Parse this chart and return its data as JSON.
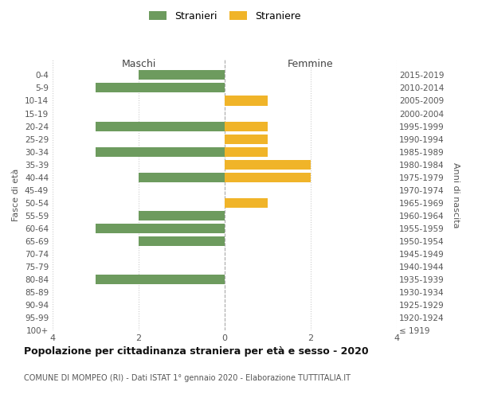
{
  "age_groups": [
    "0-4",
    "5-9",
    "10-14",
    "15-19",
    "20-24",
    "25-29",
    "30-34",
    "35-39",
    "40-44",
    "45-49",
    "50-54",
    "55-59",
    "60-64",
    "65-69",
    "70-74",
    "75-79",
    "80-84",
    "85-89",
    "90-94",
    "95-99",
    "100+"
  ],
  "birth_years": [
    "2015-2019",
    "2010-2014",
    "2005-2009",
    "2000-2004",
    "1995-1999",
    "1990-1994",
    "1985-1989",
    "1980-1984",
    "1975-1979",
    "1970-1974",
    "1965-1969",
    "1960-1964",
    "1955-1959",
    "1950-1954",
    "1945-1949",
    "1940-1944",
    "1935-1939",
    "1930-1934",
    "1925-1929",
    "1920-1924",
    "≤ 1919"
  ],
  "maschi": [
    2,
    3,
    0,
    0,
    3,
    0,
    3,
    0,
    2,
    0,
    0,
    2,
    3,
    2,
    0,
    0,
    3,
    0,
    0,
    0,
    0
  ],
  "femmine": [
    0,
    0,
    1,
    0,
    1,
    1,
    1,
    2,
    2,
    0,
    1,
    0,
    0,
    0,
    0,
    0,
    0,
    0,
    0,
    0,
    0
  ],
  "color_maschi": "#6d9b5e",
  "color_femmine": "#f0b429",
  "title": "Popolazione per cittadinanza straniera per età e sesso - 2020",
  "subtitle": "COMUNE DI MOMPEO (RI) - Dati ISTAT 1° gennaio 2020 - Elaborazione TUTTITALIA.IT",
  "label_maschi": "Maschi",
  "label_femmine": "Femmine",
  "ylabel_left": "Fasce di età",
  "ylabel_right": "Anni di nascita",
  "legend_maschi": "Stranieri",
  "legend_femmine": "Straniere",
  "xlim": 4,
  "background_color": "#ffffff",
  "grid_color": "#cccccc"
}
